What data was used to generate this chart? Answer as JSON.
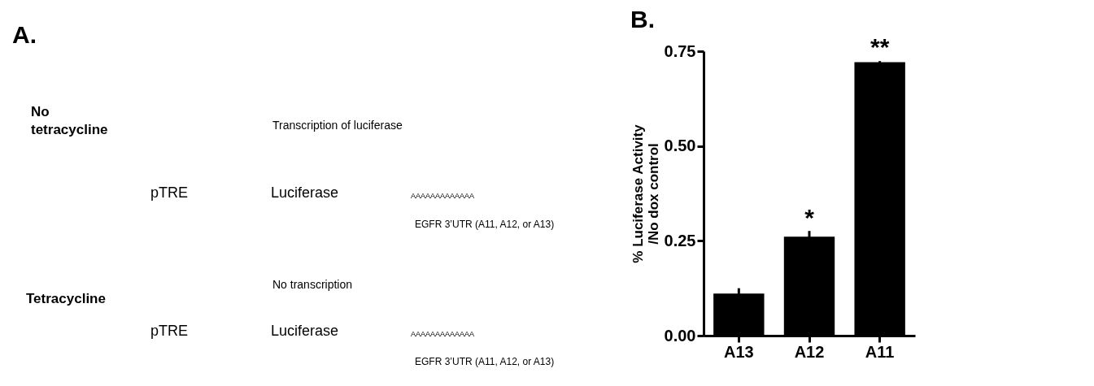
{
  "chart_data": [
    {
      "type": "other",
      "title": "A.",
      "annotations": [
        "No tetracycline",
        "Transcription of luciferase",
        "pTRE",
        "Luciferase",
        "AAAAAAAAAAAAA",
        "EGFR 3’UTR (A11, A12, or A13)",
        "Tetracycline",
        "No transcription",
        "pTRE",
        "Luciferase",
        "AAAAAAAAAAAAA",
        "EGFR 3’UTR (A11, A12, or A13)"
      ]
    },
    {
      "type": "bar",
      "title": "B.",
      "ylabel": "% Luciferase Activity\n/No dox control",
      "categories": [
        "A13",
        "A12",
        "A11"
      ],
      "values": [
        0.111,
        0.261,
        0.721
      ],
      "errors": [
        0.014,
        0.015,
        0.003
      ],
      "color": "#000000",
      "ylim": [
        0,
        0.75
      ],
      "yticks": [
        {
          "value": 0,
          "label": "0.00"
        },
        0.25,
        {
          "value": 0.5,
          "label": "0.50"
        },
        0.75
      ],
      "annotations": [
        {
          "text": "*",
          "x": "A12",
          "y": 0.275
        },
        {
          "text": "**",
          "x": "A11",
          "y": 0.724
        }
      ],
      "grid": false
    }
  ]
}
